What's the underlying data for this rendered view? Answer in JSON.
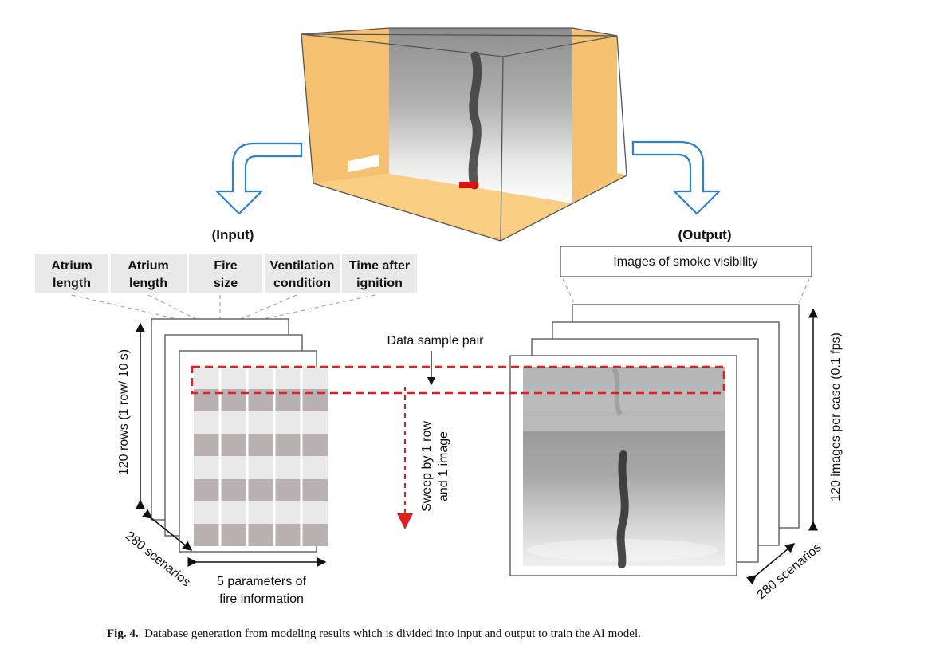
{
  "input_label": "(Input)",
  "output_label": "(Output)",
  "parameters": [
    {
      "line1": "Atrium",
      "line2": "length"
    },
    {
      "line1": "Atrium",
      "line2": "length"
    },
    {
      "line1": "Fire",
      "line2": "size"
    },
    {
      "line1": "Ventilation",
      "line2": "condition"
    },
    {
      "line1": "Time after",
      "line2": "ignition"
    }
  ],
  "rows_axis": "120 rows (1 row/ 10 s)",
  "input_scenarios": "280 scenarios",
  "columns_axis_line1": "5 parameters of",
  "columns_axis_line2": "fire information",
  "data_pair_label": "Data sample pair",
  "sweep_line1": "Sweep by 1 row",
  "sweep_line2": "and 1 image",
  "output_header": "Images of smoke visibility",
  "images_axis": "120 images per case (0.1 fps)",
  "output_scenarios": "280 scenarios",
  "caption_prefix": "Fig. 4.",
  "caption_text": "Database generation from modeling results which is divided into input and output to train the AI model.",
  "colors": {
    "wall": "#f5c070",
    "arrow": "#2f7fd0",
    "highlight": "#e02020",
    "row_dark": "#b9b1b1",
    "row_light": "#e9e9e9"
  }
}
